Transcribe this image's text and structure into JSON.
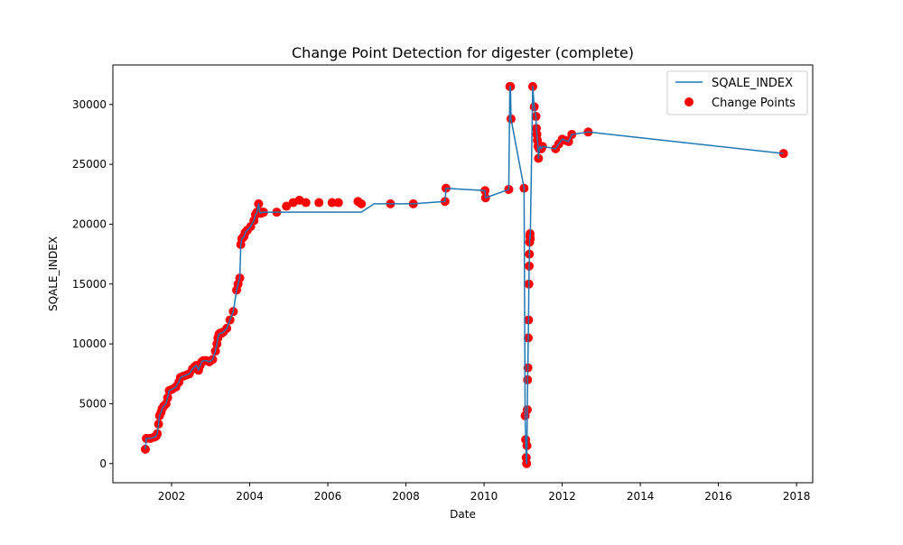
{
  "chart_data": {
    "type": "line",
    "title": "Change Point Detection for digester (complete)",
    "xlabel": "Date",
    "ylabel": "SQALE_INDEX",
    "x_scale": "date",
    "xlim": [
      "2000-07-01",
      "2018-06-01"
    ],
    "ylim": [
      -1600,
      33300
    ],
    "x_ticks": [
      "2002-01-01",
      "2004-01-01",
      "2006-01-01",
      "2008-01-01",
      "2010-01-01",
      "2012-01-01",
      "2014-01-01",
      "2016-01-01",
      "2018-01-01"
    ],
    "x_tick_labels": [
      "2002",
      "2004",
      "2006",
      "2008",
      "2010",
      "2012",
      "2014",
      "2016",
      "2018"
    ],
    "y_ticks": [
      0,
      5000,
      10000,
      15000,
      20000,
      25000,
      30000
    ],
    "y_tick_labels": [
      "0",
      "5000",
      "10000",
      "15000",
      "20000",
      "25000",
      "30000"
    ],
    "grid": false,
    "legend_position": "upper right",
    "colors": {
      "line": "#1f77b4",
      "points": "#ff0000"
    },
    "series": [
      {
        "name": "SQALE_INDEX",
        "kind": "line",
        "x": [
          "2001-05-01",
          "2001-05-10",
          "2001-06-15",
          "2001-07-20",
          "2001-08-10",
          "2001-08-20",
          "2001-09-01",
          "2001-09-10",
          "2001-09-25",
          "2001-10-05",
          "2001-10-20",
          "2001-11-10",
          "2001-11-25",
          "2001-12-10",
          "2002-01-05",
          "2002-02-10",
          "2002-03-10",
          "2002-03-25",
          "2002-04-20",
          "2002-05-20",
          "2002-06-15",
          "2002-07-15",
          "2002-08-05",
          "2002-08-20",
          "2002-09-10",
          "2002-09-25",
          "2002-10-10",
          "2002-10-25",
          "2002-11-20",
          "2002-12-20",
          "2003-01-20",
          "2003-02-15",
          "2003-03-01",
          "2003-03-10",
          "2003-03-20",
          "2003-04-01",
          "2003-04-15",
          "2003-05-01",
          "2003-06-01",
          "2003-07-01",
          "2003-08-01",
          "2003-09-01",
          "2003-09-15",
          "2003-10-01",
          "2003-10-10",
          "2003-10-20",
          "2003-11-01",
          "2003-11-10",
          "2003-11-20",
          "2003-12-10",
          "2004-01-10",
          "2004-02-10",
          "2004-02-25",
          "2004-03-10",
          "2004-03-25",
          "2004-04-05",
          "2004-04-15",
          "2004-04-25",
          "2004-05-10",
          "2004-06-10",
          "2004-09-10",
          "2004-11-10",
          "2005-01-10",
          "2005-03-10",
          "2005-05-10",
          "2005-07-10",
          "2005-09-10",
          "2005-11-10",
          "2006-02-10",
          "2006-05-10",
          "2006-08-10",
          "2006-11-10",
          "2007-03-10",
          "2007-08-10",
          "2008-03-10",
          "2009-01-01",
          "2009-01-10",
          "2010-01-10",
          "2010-01-15",
          "2010-08-20",
          "2010-08-30",
          "2010-09-05",
          "2010-09-10",
          "2011-01-10",
          "2011-01-20",
          "2011-01-25",
          "2011-01-30",
          "2011-02-03",
          "2011-02-06",
          "2011-02-09",
          "2011-02-12",
          "2011-02-15",
          "2011-02-18",
          "2011-02-21",
          "2011-02-24",
          "2011-02-27",
          "2011-03-01",
          "2011-03-03",
          "2011-03-05",
          "2011-03-07",
          "2011-03-09",
          "2011-04-01",
          "2011-04-15",
          "2011-05-01",
          "2011-05-05",
          "2011-05-10",
          "2011-05-15",
          "2011-05-20",
          "2011-05-25",
          "2011-06-01",
          "2011-06-10",
          "2011-06-20",
          "2011-07-01",
          "2011-11-01",
          "2011-12-01",
          "2012-01-01",
          "2012-02-01",
          "2012-03-01",
          "2012-04-01",
          "2012-09-01",
          "2017-09-01"
        ],
        "y": [
          1200,
          2100,
          2100,
          2200,
          2300,
          2500,
          3300,
          4000,
          4300,
          4600,
          4800,
          5000,
          5500,
          6100,
          6200,
          6400,
          6800,
          7200,
          7300,
          7400,
          7500,
          7900,
          8100,
          8200,
          7800,
          8200,
          8500,
          8600,
          8600,
          8500,
          8700,
          9400,
          10000,
          10500,
          10800,
          10900,
          10900,
          11000,
          11300,
          12000,
          12700,
          14500,
          15000,
          15500,
          18300,
          18800,
          18900,
          19000,
          19300,
          19500,
          19800,
          20300,
          20800,
          21000,
          21700,
          21000,
          20900,
          21000,
          21000,
          21000,
          21000,
          21000,
          21000,
          21000,
          21000,
          21000,
          21000,
          21000,
          21000,
          21000,
          21000,
          21000,
          21700,
          21700,
          21700,
          21900,
          23000,
          22800,
          22200,
          22900,
          31500,
          31500,
          28800,
          23000,
          4000,
          2000,
          500,
          0,
          1500,
          4500,
          7000,
          8000,
          10500,
          12000,
          15000,
          16500,
          17500,
          18500,
          19000,
          19200,
          18800,
          31500,
          29800,
          29000,
          28000,
          27500,
          27000,
          26500,
          25500,
          26300,
          26500,
          26300,
          26500,
          26300,
          26700,
          27100,
          27000,
          26900,
          27500,
          27700,
          25900
        ]
      },
      {
        "name": "Change Points",
        "kind": "scatter",
        "x": [
          "2001-05-01",
          "2001-05-10",
          "2001-06-15",
          "2001-07-20",
          "2001-08-10",
          "2001-08-20",
          "2001-09-01",
          "2001-09-10",
          "2001-09-25",
          "2001-10-05",
          "2001-10-20",
          "2001-11-10",
          "2001-11-25",
          "2001-12-10",
          "2002-01-05",
          "2002-02-10",
          "2002-03-10",
          "2002-03-25",
          "2002-04-20",
          "2002-05-20",
          "2002-06-15",
          "2002-07-15",
          "2002-08-05",
          "2002-08-20",
          "2002-09-10",
          "2002-09-25",
          "2002-10-10",
          "2002-10-25",
          "2002-11-20",
          "2002-12-20",
          "2003-01-20",
          "2003-02-15",
          "2003-03-01",
          "2003-03-10",
          "2003-03-20",
          "2003-04-01",
          "2003-04-15",
          "2003-05-01",
          "2003-06-01",
          "2003-07-01",
          "2003-08-01",
          "2003-09-01",
          "2003-09-15",
          "2003-10-01",
          "2003-10-10",
          "2003-10-20",
          "2003-11-01",
          "2003-11-10",
          "2003-11-20",
          "2003-12-10",
          "2004-01-10",
          "2004-02-10",
          "2004-02-25",
          "2004-03-10",
          "2004-03-25",
          "2004-04-05",
          "2004-04-15",
          "2004-04-25",
          "2004-05-10",
          "2004-09-10",
          "2004-12-10",
          "2005-02-10",
          "2005-04-10",
          "2005-06-10",
          "2005-10-10",
          "2006-02-10",
          "2006-04-10",
          "2006-10-10",
          "2006-11-10",
          "2007-08-10",
          "2008-03-10",
          "2009-01-01",
          "2009-01-10",
          "2010-01-10",
          "2010-01-15",
          "2010-08-20",
          "2010-08-30",
          "2010-09-05",
          "2010-09-10",
          "2011-01-10",
          "2011-01-20",
          "2011-01-25",
          "2011-01-30",
          "2011-02-03",
          "2011-02-06",
          "2011-02-09",
          "2011-02-12",
          "2011-02-15",
          "2011-02-18",
          "2011-02-21",
          "2011-02-24",
          "2011-02-27",
          "2011-03-01",
          "2011-03-03",
          "2011-03-05",
          "2011-03-07",
          "2011-03-09",
          "2011-04-01",
          "2011-04-15",
          "2011-05-01",
          "2011-05-05",
          "2011-05-10",
          "2011-05-15",
          "2011-05-20",
          "2011-05-25",
          "2011-06-01",
          "2011-06-10",
          "2011-06-20",
          "2011-07-01",
          "2011-11-01",
          "2011-12-01",
          "2012-01-01",
          "2012-02-01",
          "2012-03-01",
          "2012-04-01",
          "2012-09-01",
          "2017-09-01"
        ],
        "y": [
          1200,
          2100,
          2100,
          2200,
          2300,
          2500,
          3300,
          4000,
          4300,
          4600,
          4800,
          5000,
          5500,
          6100,
          6200,
          6400,
          6800,
          7200,
          7300,
          7400,
          7500,
          7900,
          8100,
          8200,
          7800,
          8200,
          8500,
          8600,
          8600,
          8500,
          8700,
          9400,
          10000,
          10500,
          10800,
          10900,
          10900,
          11000,
          11300,
          12000,
          12700,
          14500,
          15000,
          15500,
          18300,
          18800,
          18900,
          19000,
          19300,
          19500,
          19800,
          20300,
          20800,
          21000,
          21700,
          21000,
          20900,
          21000,
          21000,
          21000,
          21500,
          21800,
          22000,
          21800,
          21800,
          21800,
          21800,
          21900,
          21700,
          21700,
          21700,
          21900,
          23000,
          22800,
          22200,
          22900,
          31500,
          31500,
          28800,
          23000,
          4000,
          2000,
          500,
          0,
          1500,
          4500,
          7000,
          8000,
          10500,
          12000,
          15000,
          16500,
          17500,
          18500,
          19000,
          19200,
          18800,
          31500,
          29800,
          29000,
          28000,
          27500,
          27000,
          26500,
          25500,
          26300,
          26500,
          26300,
          26500,
          26300,
          26700,
          27100,
          27000,
          26900,
          27500,
          27700,
          25900
        ]
      }
    ]
  }
}
